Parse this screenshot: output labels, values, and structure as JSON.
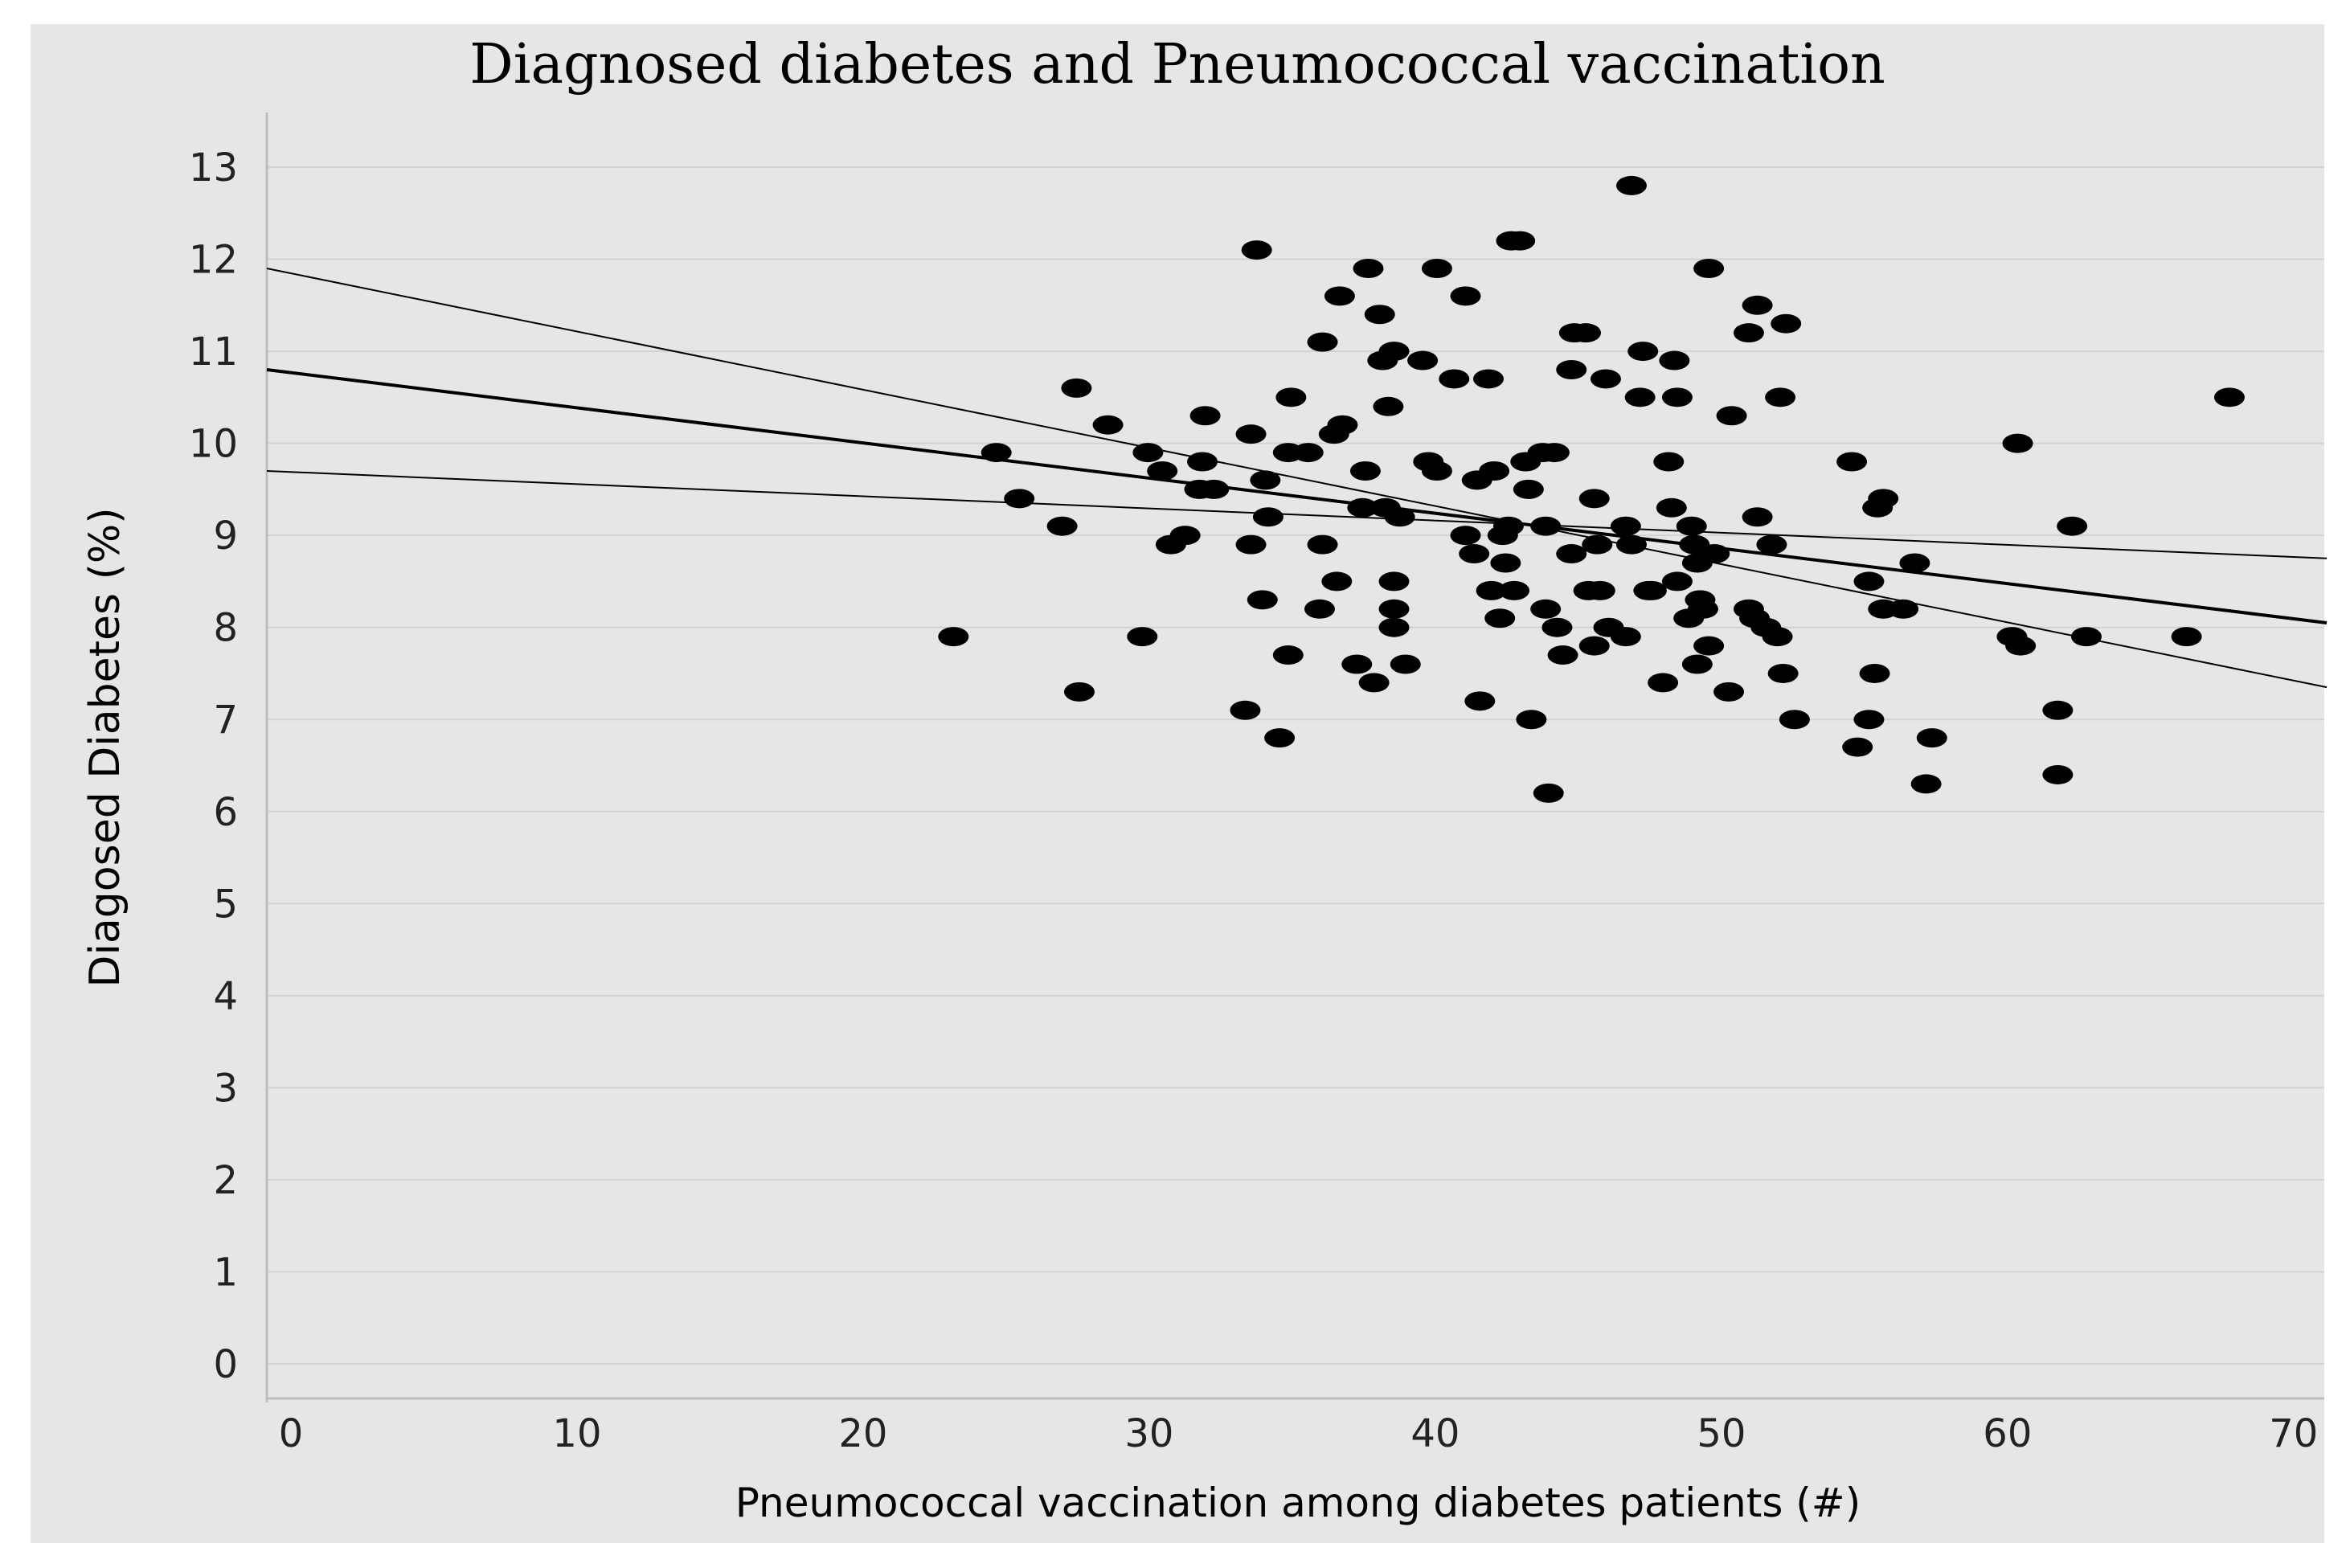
{
  "chart_data": {
    "type": "scatter",
    "title": "Diagnosed diabetes and Pneumococcal vaccination",
    "xlabel": "Pneumococcal vaccination among diabetes patients (#)",
    "ylabel": "Diagosed Diabetes (%)",
    "xlim": [
      0,
      72
    ],
    "ylim": [
      0,
      13
    ],
    "xticks": [
      0,
      10,
      20,
      30,
      40,
      50,
      60,
      70
    ],
    "yticks": [
      0,
      1,
      2,
      3,
      4,
      5,
      6,
      7,
      8,
      9,
      10,
      11,
      12,
      13
    ],
    "grid": true,
    "colors": {
      "background": "#e6e6e6",
      "grid": "#d2d2d2",
      "points": "#000000",
      "lines": "#000000"
    },
    "series": [
      {
        "name": "counties",
        "points": [
          [
            24,
            7.9
          ],
          [
            25.5,
            9.9
          ],
          [
            26.3,
            9.4
          ],
          [
            27.8,
            9.1
          ],
          [
            28.3,
            10.6
          ],
          [
            28.4,
            7.3
          ],
          [
            29.4,
            10.2
          ],
          [
            30.6,
            7.9
          ],
          [
            30.8,
            9.9
          ],
          [
            31.3,
            9.7
          ],
          [
            31.6,
            8.9
          ],
          [
            32.1,
            9.0
          ],
          [
            32.6,
            9.5
          ],
          [
            32.7,
            9.8
          ],
          [
            32.8,
            10.3
          ],
          [
            33.1,
            9.5
          ],
          [
            34.2,
            7.1
          ],
          [
            34.4,
            10.1
          ],
          [
            34.4,
            8.9
          ],
          [
            34.6,
            12.1
          ],
          [
            34.8,
            8.3
          ],
          [
            34.9,
            9.6
          ],
          [
            35.0,
            9.2
          ],
          [
            35.4,
            6.8
          ],
          [
            35.7,
            9.9
          ],
          [
            35.7,
            7.7
          ],
          [
            35.8,
            10.5
          ],
          [
            36.4,
            9.9
          ],
          [
            36.8,
            8.2
          ],
          [
            36.9,
            11.1
          ],
          [
            36.9,
            8.9
          ],
          [
            37.3,
            10.1
          ],
          [
            37.4,
            8.5
          ],
          [
            37.5,
            11.6
          ],
          [
            37.6,
            10.2
          ],
          [
            38.1,
            7.6
          ],
          [
            38.3,
            9.3
          ],
          [
            38.4,
            9.7
          ],
          [
            38.5,
            11.9
          ],
          [
            38.7,
            7.4
          ],
          [
            38.9,
            11.4
          ],
          [
            39.0,
            10.9
          ],
          [
            39.1,
            9.3
          ],
          [
            39.2,
            10.4
          ],
          [
            39.4,
            11.0
          ],
          [
            39.4,
            8.5
          ],
          [
            39.4,
            8.2
          ],
          [
            39.4,
            8.0
          ],
          [
            39.6,
            9.2
          ],
          [
            39.8,
            7.6
          ],
          [
            40.4,
            10.9
          ],
          [
            40.6,
            9.8
          ],
          [
            40.9,
            9.7
          ],
          [
            40.9,
            11.9
          ],
          [
            41.5,
            10.7
          ],
          [
            41.9,
            9.0
          ],
          [
            41.9,
            11.6
          ],
          [
            42.2,
            8.8
          ],
          [
            42.3,
            9.6
          ],
          [
            42.4,
            7.2
          ],
          [
            42.7,
            10.7
          ],
          [
            42.8,
            8.4
          ],
          [
            42.9,
            9.7
          ],
          [
            43.1,
            8.1
          ],
          [
            43.2,
            9.0
          ],
          [
            43.3,
            8.7
          ],
          [
            43.4,
            9.1
          ],
          [
            43.5,
            12.2
          ],
          [
            43.6,
            8.4
          ],
          [
            43.8,
            12.2
          ],
          [
            44.0,
            9.8
          ],
          [
            44.1,
            9.5
          ],
          [
            44.2,
            7.0
          ],
          [
            44.6,
            9.9
          ],
          [
            44.7,
            8.2
          ],
          [
            44.7,
            9.1
          ],
          [
            44.8,
            6.2
          ],
          [
            45.0,
            9.9
          ],
          [
            45.1,
            8.0
          ],
          [
            45.3,
            7.7
          ],
          [
            45.6,
            8.8
          ],
          [
            45.6,
            10.8
          ],
          [
            45.7,
            11.2
          ],
          [
            46.1,
            11.2
          ],
          [
            46.2,
            8.4
          ],
          [
            46.4,
            7.8
          ],
          [
            46.4,
            9.4
          ],
          [
            46.5,
            8.9
          ],
          [
            46.6,
            8.4
          ],
          [
            46.8,
            10.7
          ],
          [
            46.9,
            8.0
          ],
          [
            47.5,
            7.9
          ],
          [
            47.5,
            9.1
          ],
          [
            47.7,
            8.9
          ],
          [
            47.7,
            12.8
          ],
          [
            48.0,
            10.5
          ],
          [
            48.1,
            11.0
          ],
          [
            48.3,
            8.4
          ],
          [
            48.4,
            8.4
          ],
          [
            48.8,
            7.4
          ],
          [
            49.0,
            9.8
          ],
          [
            49.1,
            9.3
          ],
          [
            49.2,
            10.9
          ],
          [
            49.3,
            10.5
          ],
          [
            49.3,
            8.5
          ],
          [
            49.7,
            8.1
          ],
          [
            49.8,
            9.1
          ],
          [
            49.9,
            8.9
          ],
          [
            50.0,
            8.7
          ],
          [
            50.0,
            7.6
          ],
          [
            50.1,
            8.3
          ],
          [
            50.2,
            8.2
          ],
          [
            50.4,
            11.9
          ],
          [
            50.4,
            7.8
          ],
          [
            50.6,
            8.8
          ],
          [
            51.1,
            7.3
          ],
          [
            51.2,
            10.3
          ],
          [
            51.8,
            11.2
          ],
          [
            51.8,
            8.2
          ],
          [
            52.0,
            8.1
          ],
          [
            52.1,
            11.5
          ],
          [
            52.1,
            9.2
          ],
          [
            52.4,
            8.0
          ],
          [
            52.6,
            8.9
          ],
          [
            52.8,
            7.9
          ],
          [
            52.9,
            10.5
          ],
          [
            53.0,
            7.5
          ],
          [
            53.1,
            11.3
          ],
          [
            53.4,
            7.0
          ],
          [
            55.4,
            9.8
          ],
          [
            55.6,
            6.7
          ],
          [
            56.0,
            8.5
          ],
          [
            56.0,
            7.0
          ],
          [
            56.2,
            7.5
          ],
          [
            56.3,
            9.3
          ],
          [
            56.5,
            9.4
          ],
          [
            56.5,
            8.2
          ],
          [
            57.2,
            8.2
          ],
          [
            57.6,
            8.7
          ],
          [
            58.0,
            6.3
          ],
          [
            58.2,
            6.8
          ],
          [
            61.0,
            7.9
          ],
          [
            61.3,
            7.8
          ],
          [
            61.2,
            10.0
          ],
          [
            62.6,
            7.1
          ],
          [
            62.6,
            6.4
          ],
          [
            63.1,
            9.1
          ],
          [
            63.6,
            7.9
          ],
          [
            67.1,
            7.9
          ],
          [
            68.6,
            10.5
          ]
        ]
      }
    ],
    "lines": [
      {
        "name": "upper bound",
        "x": [
          0,
          72
        ],
        "y": [
          11.9,
          7.35
        ]
      },
      {
        "name": "fit",
        "x": [
          0,
          72
        ],
        "y": [
          10.8,
          8.05
        ]
      },
      {
        "name": "lower bound",
        "x": [
          0,
          72
        ],
        "y": [
          9.7,
          8.75
        ]
      }
    ]
  }
}
